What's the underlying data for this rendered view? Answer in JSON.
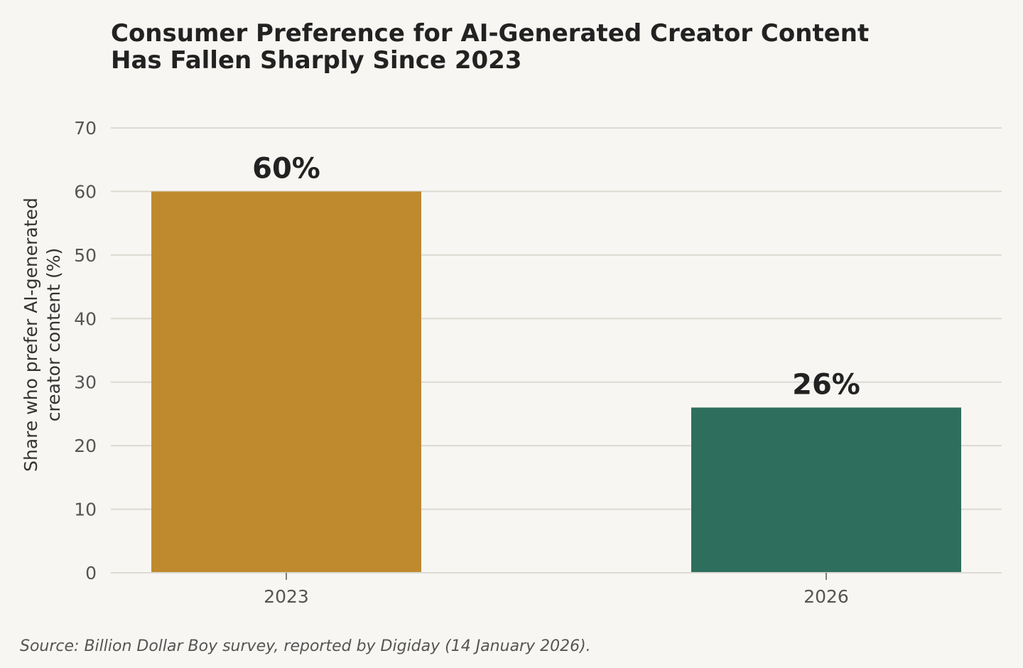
{
  "chart_data": {
    "type": "bar",
    "title_lines": [
      "Consumer Preference for AI-Generated Creator Content",
      "Has Fallen Sharply Since 2023"
    ],
    "ylabel_lines": [
      "Share who prefer AI-generated",
      "creator content (%)"
    ],
    "xlabel": "",
    "categories": [
      "2023",
      "2026"
    ],
    "values": [
      60,
      26
    ],
    "data_labels": [
      "60%",
      "26%"
    ],
    "bar_colors": [
      "#bf8a2e",
      "#2e6e5c"
    ],
    "ylim": [
      0,
      70
    ],
    "yticks": [
      0,
      10,
      20,
      30,
      40,
      50,
      60,
      70
    ],
    "grid": "horizontal",
    "grid_color": "#dcdad3",
    "background_color": "#f7f6f2",
    "source": "Source: Billion Dollar Boy survey, reported by Digiday (14 January 2026)."
  }
}
